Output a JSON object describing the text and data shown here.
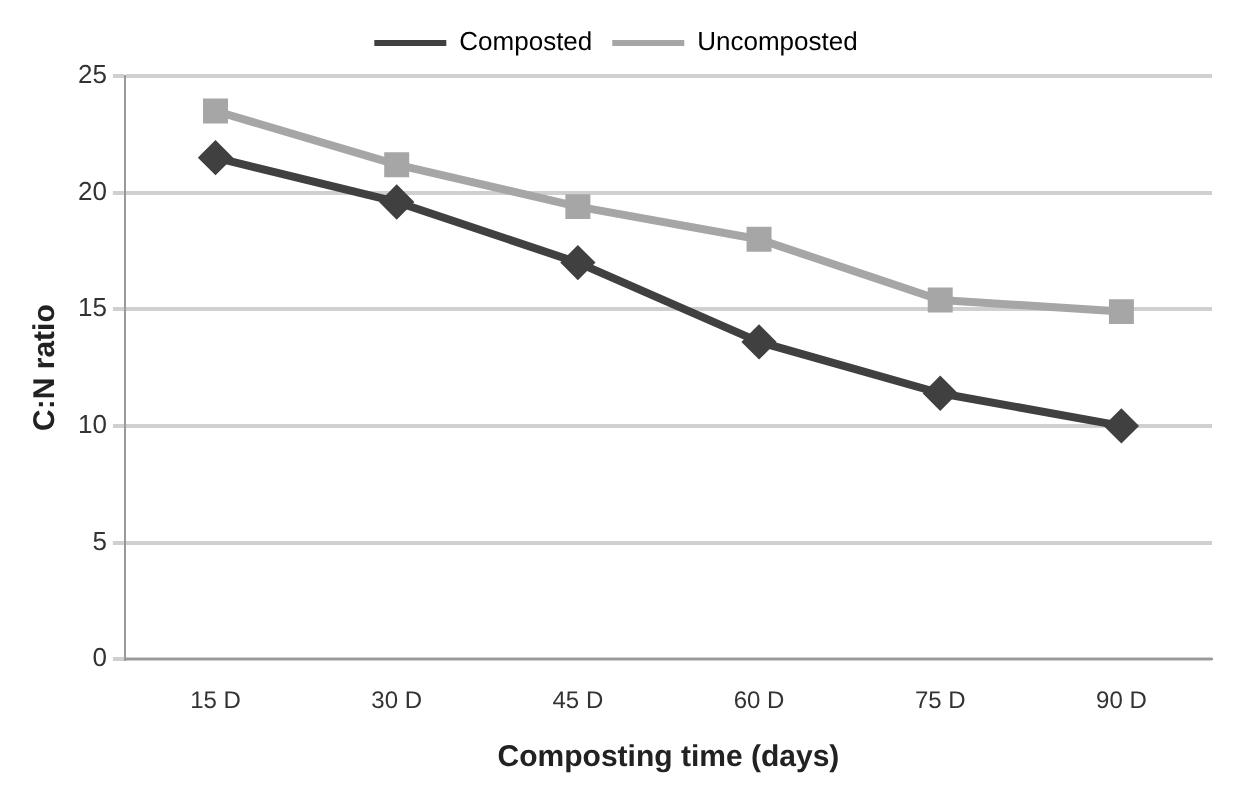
{
  "chart_data": {
    "type": "line",
    "xlabel": "Composting time (days)",
    "ylabel": "C:N ratio",
    "categories": [
      "15 D",
      "30 D",
      "45 D",
      "60 D",
      "75 D",
      "90 D"
    ],
    "series": [
      {
        "name": "Composted",
        "color": "#404040",
        "marker": "diamond",
        "values": [
          21.5,
          19.6,
          17,
          13.6,
          11.4,
          10
        ]
      },
      {
        "name": "Uncomposted",
        "color": "#a6a6a6",
        "marker": "square",
        "values": [
          23.5,
          21.2,
          19.4,
          18,
          15.4,
          14.9
        ]
      }
    ],
    "ylim": [
      0,
      25
    ],
    "yticks": [
      0,
      5,
      10,
      15,
      20,
      25
    ],
    "grid": "y",
    "legend": "top"
  }
}
